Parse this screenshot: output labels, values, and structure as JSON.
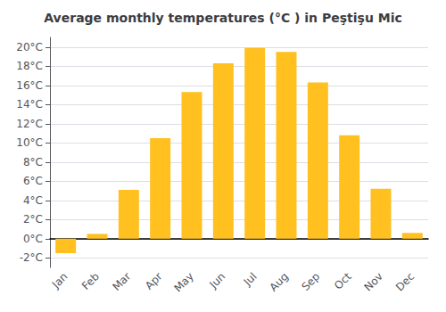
{
  "chart_data": {
    "type": "bar",
    "title": "Average monthly temperatures (°C ) in Peştişu Mic",
    "categories": [
      "Jan",
      "Feb",
      "Mar",
      "Apr",
      "May",
      "Jun",
      "Jul",
      "Aug",
      "Sep",
      "Oct",
      "Nov",
      "Dec"
    ],
    "values": [
      -1.5,
      0.5,
      5.1,
      10.5,
      15.3,
      18.3,
      19.9,
      19.5,
      16.3,
      10.8,
      5.2,
      0.6
    ],
    "color": "#FFC020",
    "ylim": [
      -3,
      21
    ],
    "yticks": [
      {
        "value": -2,
        "label": "-2°C"
      },
      {
        "value": 0,
        "label": "0°C"
      },
      {
        "value": 2,
        "label": "2°C"
      },
      {
        "value": 4,
        "label": "4°C"
      },
      {
        "value": 6,
        "label": "6°C"
      },
      {
        "value": 8,
        "label": "8°C"
      },
      {
        "value": 10,
        "label": "10°C"
      },
      {
        "value": 12,
        "label": "12°C"
      },
      {
        "value": 14,
        "label": "14°C"
      },
      {
        "value": 16,
        "label": "16°C"
      },
      {
        "value": 18,
        "label": "18°C"
      },
      {
        "value": 20,
        "label": "20°C"
      }
    ],
    "grid": true
  }
}
